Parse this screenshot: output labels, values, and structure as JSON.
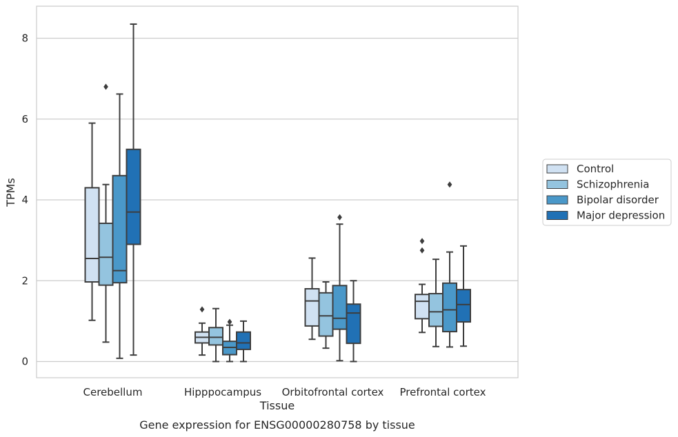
{
  "chart_data": {
    "type": "box",
    "title": "",
    "caption": "Gene expression for ENSG00000280758 by tissue",
    "xlabel": "Tissue",
    "ylabel": "TPMs",
    "ylim": [
      -0.4,
      8.8
    ],
    "yticks": [
      0,
      2,
      4,
      6,
      8
    ],
    "grid": "horizontal",
    "legend_position": "right",
    "categories": [
      "Cerebellum",
      "Hipppocampus",
      "Orbitofrontal cortex",
      "Prefrontal cortex"
    ],
    "series": [
      {
        "name": "Control",
        "color": "#d0e1f2",
        "boxes": [
          {
            "whislo": 1.02,
            "q1": 1.97,
            "med": 2.55,
            "q3": 4.3,
            "whishi": 5.9,
            "fliers": []
          },
          {
            "whislo": 0.16,
            "q1": 0.46,
            "med": 0.6,
            "q3": 0.73,
            "whishi": 0.95,
            "fliers": [
              1.29
            ]
          },
          {
            "whislo": 0.55,
            "q1": 0.88,
            "med": 1.5,
            "q3": 1.8,
            "whishi": 2.56,
            "fliers": []
          },
          {
            "whislo": 0.72,
            "q1": 1.06,
            "med": 1.49,
            "q3": 1.66,
            "whishi": 1.91,
            "fliers": [
              2.75,
              2.98
            ]
          }
        ]
      },
      {
        "name": "Schizophrenia",
        "color": "#94c4df",
        "boxes": [
          {
            "whislo": 0.48,
            "q1": 1.89,
            "med": 2.58,
            "q3": 3.42,
            "whishi": 4.38,
            "fliers": [
              6.8
            ]
          },
          {
            "whislo": 0.0,
            "q1": 0.41,
            "med": 0.6,
            "q3": 0.84,
            "whishi": 1.31,
            "fliers": []
          },
          {
            "whislo": 0.33,
            "q1": 0.63,
            "med": 1.13,
            "q3": 1.7,
            "whishi": 1.97,
            "fliers": []
          },
          {
            "whislo": 0.37,
            "q1": 0.87,
            "med": 1.23,
            "q3": 1.68,
            "whishi": 2.53,
            "fliers": []
          }
        ]
      },
      {
        "name": "Bipolar disorder",
        "color": "#4a98c9",
        "boxes": [
          {
            "whislo": 0.08,
            "q1": 1.95,
            "med": 2.25,
            "q3": 4.6,
            "whishi": 6.62,
            "fliers": []
          },
          {
            "whislo": 0.0,
            "q1": 0.17,
            "med": 0.35,
            "q3": 0.5,
            "whishi": 0.9,
            "fliers": [
              0.98
            ]
          },
          {
            "whislo": 0.02,
            "q1": 0.8,
            "med": 1.07,
            "q3": 1.88,
            "whishi": 3.4,
            "fliers": [
              3.57
            ]
          },
          {
            "whislo": 0.36,
            "q1": 0.74,
            "med": 1.28,
            "q3": 1.94,
            "whishi": 2.71,
            "fliers": [
              4.38
            ]
          }
        ]
      },
      {
        "name": "Major depression",
        "color": "#2171b5",
        "boxes": [
          {
            "whislo": 0.16,
            "q1": 2.9,
            "med": 3.7,
            "q3": 5.25,
            "whishi": 8.35,
            "fliers": []
          },
          {
            "whislo": 0.0,
            "q1": 0.3,
            "med": 0.46,
            "q3": 0.73,
            "whishi": 1.0,
            "fliers": []
          },
          {
            "whislo": 0.0,
            "q1": 0.45,
            "med": 1.2,
            "q3": 1.42,
            "whishi": 2.0,
            "fliers": []
          },
          {
            "whislo": 0.38,
            "q1": 0.98,
            "med": 1.41,
            "q3": 1.78,
            "whishi": 2.86,
            "fliers": []
          }
        ]
      }
    ]
  }
}
